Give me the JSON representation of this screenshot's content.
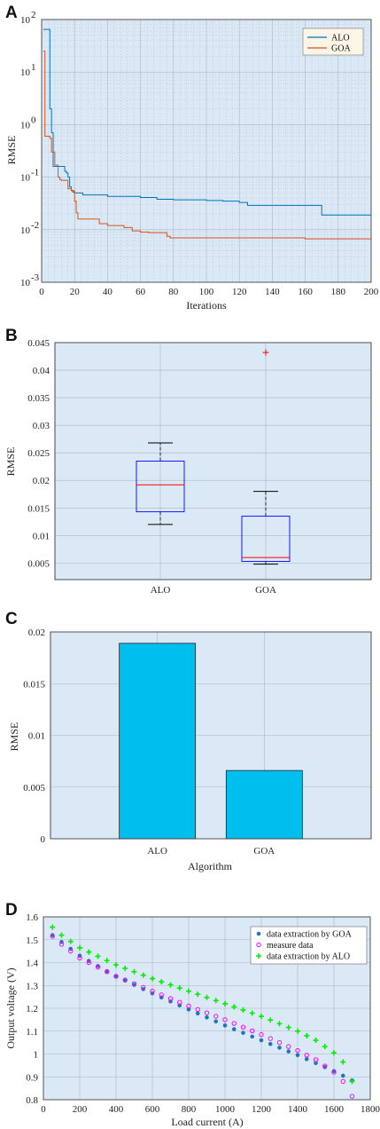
{
  "chart_data": [
    {
      "id": "A",
      "panel_label": "A",
      "type": "line",
      "ylabel": "RMSE",
      "xlabel": "Iterations",
      "y_scale": "log",
      "xlim": [
        0,
        200
      ],
      "ylim_exp": [
        -3,
        2
      ],
      "x_ticks": [
        "0",
        "20",
        "40",
        "60",
        "80",
        "100",
        "120",
        "140",
        "160",
        "180",
        "200"
      ],
      "y_tick_bases": [
        "10",
        "10",
        "10",
        "10",
        "10",
        "10"
      ],
      "y_tick_exps": [
        "-3",
        "-2",
        "-1",
        "0",
        "1",
        "2"
      ],
      "grid": true,
      "legend_position": "top-right",
      "series": [
        {
          "name": "ALO",
          "color": "#0072bd",
          "x": [
            1,
            3,
            5,
            6,
            7,
            10,
            12,
            14,
            15,
            16,
            17,
            18,
            19,
            20,
            24,
            25,
            26,
            30,
            40,
            60,
            70,
            80,
            100,
            110,
            120,
            125,
            169,
            170,
            200
          ],
          "y": [
            65,
            65,
            2.0,
            0.7,
            0.16,
            0.16,
            0.16,
            0.13,
            0.12,
            0.1,
            0.065,
            0.056,
            0.052,
            0.05,
            0.05,
            0.046,
            0.046,
            0.046,
            0.043,
            0.041,
            0.038,
            0.037,
            0.036,
            0.035,
            0.033,
            0.029,
            0.029,
            0.019,
            0.0195
          ]
        },
        {
          "name": "GOA",
          "color": "#d95319",
          "x": [
            1,
            2,
            3,
            4,
            5,
            6,
            8,
            10,
            11,
            12,
            14,
            16,
            18,
            20,
            21,
            22,
            25,
            30,
            35,
            40,
            45,
            50,
            52,
            55,
            60,
            65,
            75,
            76,
            78,
            100,
            120,
            150,
            160,
            200
          ],
          "y": [
            25,
            0.6,
            0.6,
            0.6,
            0.55,
            0.3,
            0.17,
            0.1,
            0.09,
            0.087,
            0.087,
            0.06,
            0.055,
            0.035,
            0.021,
            0.016,
            0.016,
            0.016,
            0.013,
            0.012,
            0.012,
            0.011,
            0.011,
            0.0095,
            0.009,
            0.0088,
            0.0088,
            0.0075,
            0.007,
            0.007,
            0.007,
            0.007,
            0.0067,
            0.0067
          ]
        }
      ]
    },
    {
      "id": "B",
      "panel_label": "B",
      "type": "box",
      "ylabel": "RMSE",
      "xlabel": "",
      "ylim": [
        0.002,
        0.045
      ],
      "y_ticks": [
        "0.005",
        "0.01",
        "0.015",
        "0.02",
        "0.025",
        "0.03",
        "0.035",
        "0.04",
        "0.045"
      ],
      "categories": [
        "ALO",
        "GOA"
      ],
      "boxes": [
        {
          "name": "ALO",
          "min": 0.012,
          "q1": 0.0143,
          "median": 0.0192,
          "q3": 0.0235,
          "max": 0.0268,
          "outliers": []
        },
        {
          "name": "GOA",
          "min": 0.0048,
          "q1": 0.0053,
          "median": 0.006,
          "q3": 0.0135,
          "max": 0.018,
          "outliers": [
            0.0432
          ]
        }
      ],
      "box_color": "#0000ff",
      "median_color": "#ff0000",
      "outlier_color": "#ff0000"
    },
    {
      "id": "C",
      "panel_label": "C",
      "type": "bar",
      "ylabel": "RMSE",
      "xlabel": "Algorithm",
      "ylim": [
        0,
        0.02
      ],
      "y_ticks": [
        "0",
        "0.005",
        "0.01",
        "0.015",
        "0.02"
      ],
      "categories": [
        "ALO",
        "GOA"
      ],
      "values": [
        0.0189,
        0.0066
      ],
      "bar_color": "#00bfef"
    },
    {
      "id": "D",
      "panel_label": "D",
      "type": "scatter",
      "ylabel": "Output voltage (V)",
      "xlabel": "Load current (A)",
      "xlim": [
        0,
        1800
      ],
      "ylim": [
        0.8,
        1.6
      ],
      "x_ticks": [
        "0",
        "200",
        "400",
        "600",
        "800",
        "1000",
        "1200",
        "1400",
        "1600",
        "1800"
      ],
      "y_ticks": [
        "0.8",
        "0.9",
        "1",
        "1.1",
        "1.2",
        "1.3",
        "1.4",
        "1.5",
        "1.6"
      ],
      "legend_position": "top-right",
      "x_range_points": [
        50,
        1700,
        50
      ],
      "series": [
        {
          "name": "data extraction by GOA",
          "marker": "dot",
          "color": "#1f77b4",
          "anchors_x": [
            50,
            100,
            200,
            400,
            600,
            800,
            1000,
            1200,
            1400,
            1600,
            1700
          ],
          "anchors_y": [
            1.52,
            1.49,
            1.43,
            1.34,
            1.265,
            1.195,
            1.125,
            1.06,
            0.995,
            0.925,
            0.885
          ]
        },
        {
          "name": "measure data",
          "marker": "circle",
          "color": "#ff00ff",
          "anchors_x": [
            50,
            100,
            200,
            400,
            600,
            800,
            1000,
            1200,
            1400,
            1500,
            1600,
            1650,
            1700
          ],
          "anchors_y": [
            1.515,
            1.48,
            1.42,
            1.34,
            1.275,
            1.21,
            1.15,
            1.085,
            1.015,
            0.975,
            0.92,
            0.88,
            0.815
          ]
        },
        {
          "name": "data extraction by ALO",
          "marker": "plus",
          "color": "#00ee00",
          "anchors_x": [
            50,
            100,
            200,
            400,
            600,
            800,
            1000,
            1200,
            1400,
            1500,
            1600,
            1650,
            1700
          ],
          "anchors_y": [
            1.555,
            1.52,
            1.465,
            1.39,
            1.33,
            1.275,
            1.22,
            1.165,
            1.1,
            1.06,
            1.005,
            0.965,
            0.88
          ]
        }
      ]
    }
  ]
}
